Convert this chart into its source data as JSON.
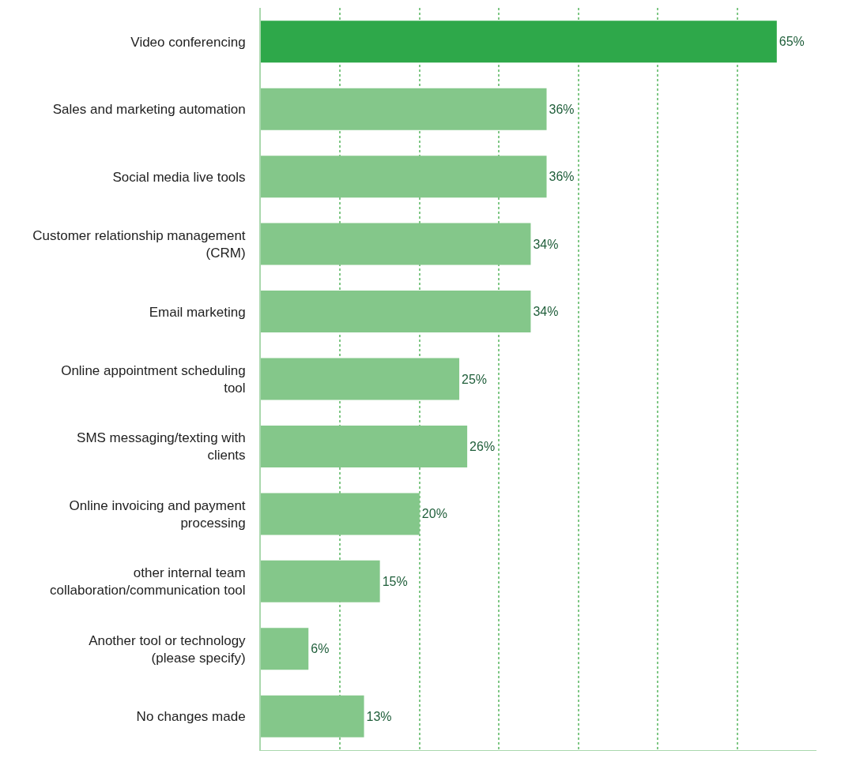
{
  "chart_data": {
    "type": "bar",
    "orientation": "horizontal",
    "categories": [
      "Video conferencing",
      "Sales and marketing automation",
      "Social media live tools",
      "Customer relationship management (CRM)",
      "Email marketing",
      "Online appointment scheduling tool",
      "SMS messaging/texting with clients",
      "Online invoicing and payment processing",
      "other internal team collaboration/communication tool",
      "Another tool or technology (please specify)",
      "No changes made"
    ],
    "values": [
      65,
      36,
      36,
      34,
      34,
      25,
      26,
      20,
      15,
      6,
      13
    ],
    "value_labels": [
      "65%",
      "36%",
      "36%",
      "34%",
      "34%",
      "25%",
      "26%",
      "20%",
      "15%",
      "6%",
      "13%"
    ],
    "colors": [
      "#2ea84a",
      "#84c78a",
      "#84c78a",
      "#84c78a",
      "#84c78a",
      "#84c78a",
      "#84c78a",
      "#84c78a",
      "#84c78a",
      "#84c78a",
      "#84c78a"
    ],
    "xlim": [
      0,
      70
    ],
    "xticks": [
      {
        "value": 10,
        "label": null
      },
      {
        "value": 20,
        "label": null
      },
      {
        "value": 30,
        "label": null
      },
      {
        "value": 40,
        "label": null
      },
      {
        "value": 50,
        "label": null
      },
      {
        "value": 60,
        "label": null
      }
    ],
    "tick_labels": "y",
    "grid": "x"
  }
}
